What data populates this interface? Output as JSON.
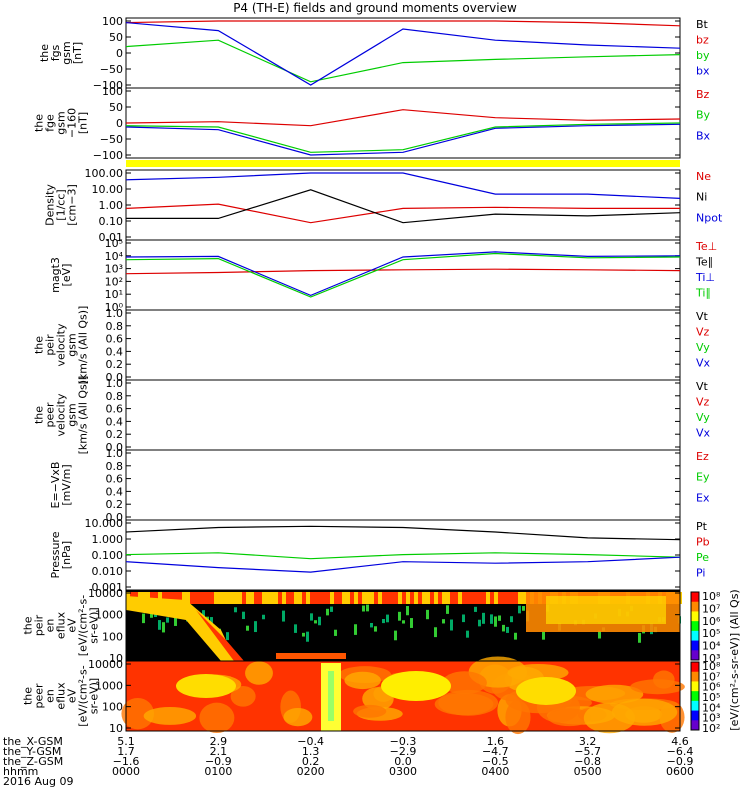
{
  "title": "P4 (TH-E) fields and ground moments overview",
  "date_label": "2016 Aug 09",
  "colors": {
    "black": "#000000",
    "red": "#dd0000",
    "green": "#00cc00",
    "blue": "#0000dd",
    "yellow": "#ffff00"
  },
  "panels": [
    {
      "id": "fgs",
      "ylabel": [
        "the",
        "fgs",
        "gsm",
        "[nT]"
      ],
      "ticks": [
        "100",
        "50",
        "0",
        "−50",
        "−100"
      ],
      "log": false,
      "ymin": -100,
      "ymax": 100,
      "legend": [
        {
          "t": "Bt",
          "c": "black"
        },
        {
          "t": "bz",
          "c": "red"
        },
        {
          "t": "by",
          "c": "green"
        },
        {
          "t": "bx",
          "c": "blue"
        }
      ]
    },
    {
      "id": "fge",
      "ylabel": [
        "the",
        "fge",
        "gsm",
        "−160",
        "[nT]"
      ],
      "ticks": [
        "100",
        "50",
        "0",
        "−50",
        "−100"
      ],
      "log": false,
      "ymin": -120,
      "ymax": 120,
      "legend": [
        {
          "t": "Bz",
          "c": "red"
        },
        {
          "t": "By",
          "c": "green"
        },
        {
          "t": "Bx",
          "c": "blue"
        }
      ]
    },
    {
      "id": "density",
      "ylabel": [
        "Density",
        "[1/cc]",
        "[cm−3]"
      ],
      "ticks": [
        "100.00",
        "10.00",
        "1.00",
        "0.10",
        "0.01"
      ],
      "log": true,
      "ymin": 0.01,
      "ymax": 300,
      "legend": [
        {
          "t": "Ne",
          "c": "red"
        },
        {
          "t": "Ni",
          "c": "black"
        },
        {
          "t": "Npot",
          "c": "blue"
        }
      ]
    },
    {
      "id": "temp",
      "ylabel": [
        "magt3",
        "[eV]"
      ],
      "ticks": [
        "10⁵",
        "10⁴",
        "10³",
        "10²",
        "10¹",
        "10⁰"
      ],
      "log": true,
      "ymin": 1,
      "ymax": 100000,
      "legend": [
        {
          "t": "Te⊥",
          "c": "red"
        },
        {
          "t": "Te∥",
          "c": "black"
        },
        {
          "t": "Ti⊥",
          "c": "blue"
        },
        {
          "t": "Ti∥",
          "c": "green"
        }
      ]
    },
    {
      "id": "peir",
      "ylabel": [
        "the",
        "peir",
        "velocity",
        "gsm",
        "[km/s (All Qs)]"
      ],
      "ticks": [
        "1.0",
        "0.8",
        "0.6",
        "0.4",
        "0.2",
        "0.0"
      ],
      "log": false,
      "ymin": 0,
      "ymax": 1,
      "legend": [
        {
          "t": "Vt",
          "c": "black"
        },
        {
          "t": "Vz",
          "c": "red"
        },
        {
          "t": "Vy",
          "c": "green"
        },
        {
          "t": "Vx",
          "c": "blue"
        }
      ]
    },
    {
      "id": "peer",
      "ylabel": [
        "the",
        "peer",
        "velocity",
        "gsm",
        "[km/s (All Qs)]"
      ],
      "ticks": [
        "1.0",
        "0.8",
        "0.6",
        "0.4",
        "0.2",
        "0.0"
      ],
      "log": false,
      "ymin": 0,
      "ymax": 1,
      "legend": [
        {
          "t": "Vt",
          "c": "black"
        },
        {
          "t": "Vz",
          "c": "red"
        },
        {
          "t": "Vy",
          "c": "green"
        },
        {
          "t": "Vx",
          "c": "blue"
        }
      ]
    },
    {
      "id": "efield",
      "ylabel": [
        "E=−VxB",
        "[mV/m]"
      ],
      "ticks": [
        "1.0",
        "0.8",
        "0.6",
        "0.4",
        "0.2",
        "0.0"
      ],
      "log": false,
      "ymin": 0,
      "ymax": 1,
      "legend": [
        {
          "t": "Ez",
          "c": "red"
        },
        {
          "t": "Ey",
          "c": "green"
        },
        {
          "t": "Ex",
          "c": "blue"
        }
      ]
    },
    {
      "id": "pressure",
      "ylabel": [
        "Pressure",
        "[nPa]"
      ],
      "ticks": [
        "10.000",
        "1.000",
        "0.100",
        "0.010",
        "0.001"
      ],
      "log": true,
      "ymin": 0.001,
      "ymax": 20,
      "legend": [
        {
          "t": "Pt",
          "c": "black"
        },
        {
          "t": "Pb",
          "c": "red"
        },
        {
          "t": "Pe",
          "c": "green"
        },
        {
          "t": "Pi",
          "c": "blue"
        }
      ]
    },
    {
      "id": "peir_spec",
      "ylabel": [
        "the",
        "peir",
        "en",
        "eflux",
        "eV",
        "[eV/(cm²-s-",
        "sr-eV)]"
      ],
      "ticks": [
        "10000",
        "1000",
        "100",
        "10"
      ],
      "spec": true
    },
    {
      "id": "peer_spec",
      "ylabel": [
        "the",
        "peer",
        "en",
        "eflux",
        "eV",
        "[eV/(cm²-s-",
        "sr-eV)]"
      ],
      "ticks": [
        "10000",
        "1000",
        "100",
        "10"
      ],
      "spec": true
    }
  ],
  "colorbar": {
    "ticks": [
      "10⁸",
      "10⁷",
      "10⁶",
      "10⁵",
      "10⁴",
      "10³"
    ],
    "ticks2": [
      "10⁸",
      "10⁷",
      "10⁶",
      "10⁵",
      "10⁴",
      "10³",
      "10²"
    ],
    "label": "[eV/(cm²-s-sr-eV)] (All Qs)"
  },
  "orbit": {
    "labels": [
      "the_X-GSM",
      "the_Y-GSM",
      "the_Z-GSM",
      "hhmm"
    ],
    "rows": [
      [
        "5.1",
        "2.9",
        "−0.4",
        "−0.3",
        "1.6",
        "3.2",
        "4.6"
      ],
      [
        "1.7",
        "2.1",
        "1.3",
        "−2.9",
        "−4.7",
        "−5.7",
        "−6.4"
      ],
      [
        "−1.6",
        "−0.9",
        "0.2",
        "0.0",
        "−0.5",
        "−0.8",
        "−0.9"
      ],
      [
        "0000",
        "0100",
        "0200",
        "0300",
        "0400",
        "0500",
        "0600"
      ]
    ]
  },
  "chart_data": {
    "type": "line",
    "title": "P4 (TH-E) fields and ground moments overview",
    "x": [
      "0000",
      "0100",
      "0200",
      "0300",
      "0400",
      "0500",
      "0600"
    ],
    "xlabel": "hhmm",
    "series": [
      {
        "name": "bz",
        "panel": "fgs",
        "values": [
          95,
          100,
          100,
          100,
          100,
          95,
          85
        ]
      },
      {
        "name": "by",
        "panel": "fgs",
        "values": [
          20,
          40,
          -90,
          -30,
          -20,
          -12,
          -5
        ]
      },
      {
        "name": "bx",
        "panel": "fgs",
        "values": [
          95,
          70,
          -100,
          75,
          40,
          25,
          15
        ]
      },
      {
        "name": "Bz",
        "panel": "fge",
        "values": [
          0,
          5,
          -10,
          50,
          20,
          10,
          15
        ]
      },
      {
        "name": "By",
        "panel": "fge",
        "values": [
          -10,
          -15,
          -110,
          -100,
          -15,
          -5,
          0
        ]
      },
      {
        "name": "Bx",
        "panel": "fge",
        "values": [
          -15,
          -25,
          -120,
          -110,
          -20,
          -10,
          -5
        ]
      },
      {
        "name": "Ne",
        "panel": "density",
        "values": [
          1.0,
          2.0,
          0.1,
          1.0,
          1.2,
          1.0,
          1.0
        ]
      },
      {
        "name": "Ni",
        "panel": "density",
        "values": [
          0.2,
          0.2,
          20,
          0.1,
          0.4,
          0.3,
          0.5
        ]
      },
      {
        "name": "Npot",
        "panel": "density",
        "values": [
          100,
          150,
          300,
          300,
          10,
          10,
          5
        ]
      },
      {
        "name": "Te⊥",
        "panel": "temp",
        "values": [
          400,
          500,
          700,
          800,
          900,
          800,
          700
        ]
      },
      {
        "name": "Ti⊥",
        "panel": "temp",
        "values": [
          8000,
          9000,
          8,
          8000,
          20000,
          9000,
          10000
        ]
      },
      {
        "name": "Ti∥",
        "panel": "temp",
        "values": [
          5000,
          6000,
          6,
          5000,
          15000,
          7000,
          8000
        ]
      },
      {
        "name": "Pt",
        "panel": "pressure",
        "values": [
          5,
          10,
          12,
          10,
          5,
          2,
          1.5
        ]
      },
      {
        "name": "Pe",
        "panel": "pressure",
        "values": [
          0.15,
          0.2,
          0.08,
          0.15,
          0.2,
          0.15,
          0.1
        ]
      },
      {
        "name": "Pi",
        "panel": "pressure",
        "values": [
          0.05,
          0.02,
          0.01,
          0.05,
          0.04,
          0.05,
          0.1
        ]
      }
    ]
  }
}
